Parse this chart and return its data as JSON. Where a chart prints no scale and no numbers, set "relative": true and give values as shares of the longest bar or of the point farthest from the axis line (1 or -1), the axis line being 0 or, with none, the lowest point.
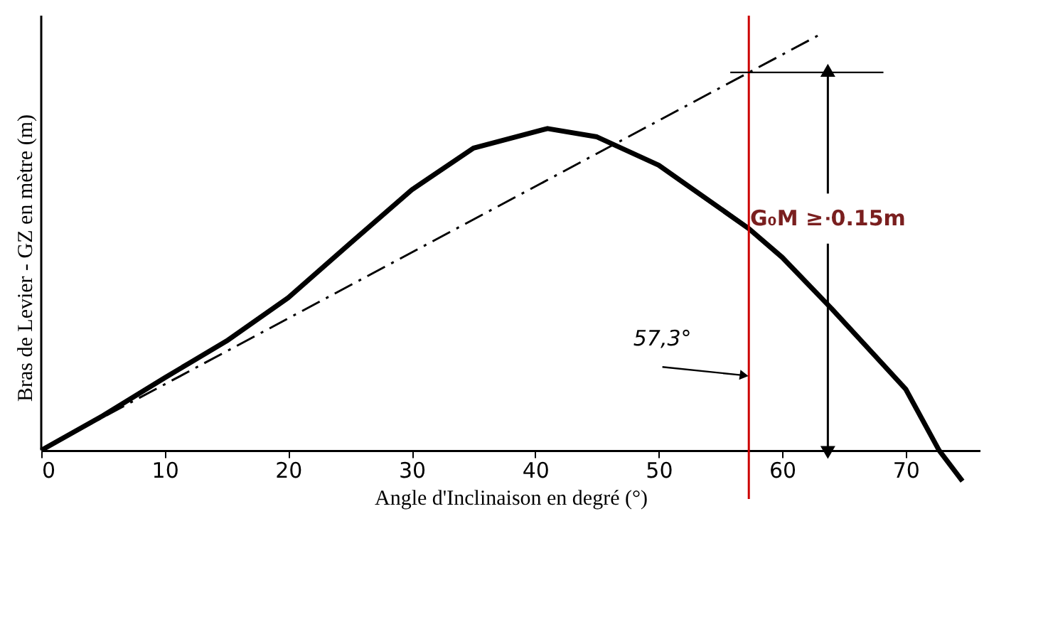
{
  "chart_data": {
    "type": "line",
    "relative": true,
    "xlabel": "Angle d'Inclinaison en degré (°)",
    "ylabel": "Bras de Levier - GZ en mètre (m)",
    "xlim": [
      0,
      76
    ],
    "xticks": [
      0,
      10,
      20,
      30,
      40,
      50,
      60,
      70
    ],
    "tick_labels": "x",
    "grid": false,
    "legend": false,
    "series": [
      {
        "color": "#000000",
        "x": [
          0,
          5,
          10,
          15,
          20,
          25,
          30,
          35,
          41,
          45,
          50,
          57.3,
          60,
          64,
          70,
          72.7,
          74.6
        ],
        "values": [
          0,
          0.083,
          0.174,
          0.262,
          0.366,
          0.496,
          0.625,
          0.725,
          0.772,
          0.752,
          0.684,
          0.532,
          0.463,
          0.34,
          0.147,
          0,
          -0.074
        ],
        "line_style": "solid"
      },
      {
        "color": "#000000",
        "x": [
          0,
          63.2
        ],
        "values": [
          0,
          1.0
        ],
        "line_style": "dashed"
      }
    ],
    "ref_lines": [
      {
        "axis": "x",
        "value": 57.3,
        "label": "57,3°",
        "color": "#cc0000"
      }
    ],
    "annotations": [
      {
        "text": "G₀M ≥ 0.15m",
        "x": 63.7,
        "y": 0.556
      }
    ]
  }
}
